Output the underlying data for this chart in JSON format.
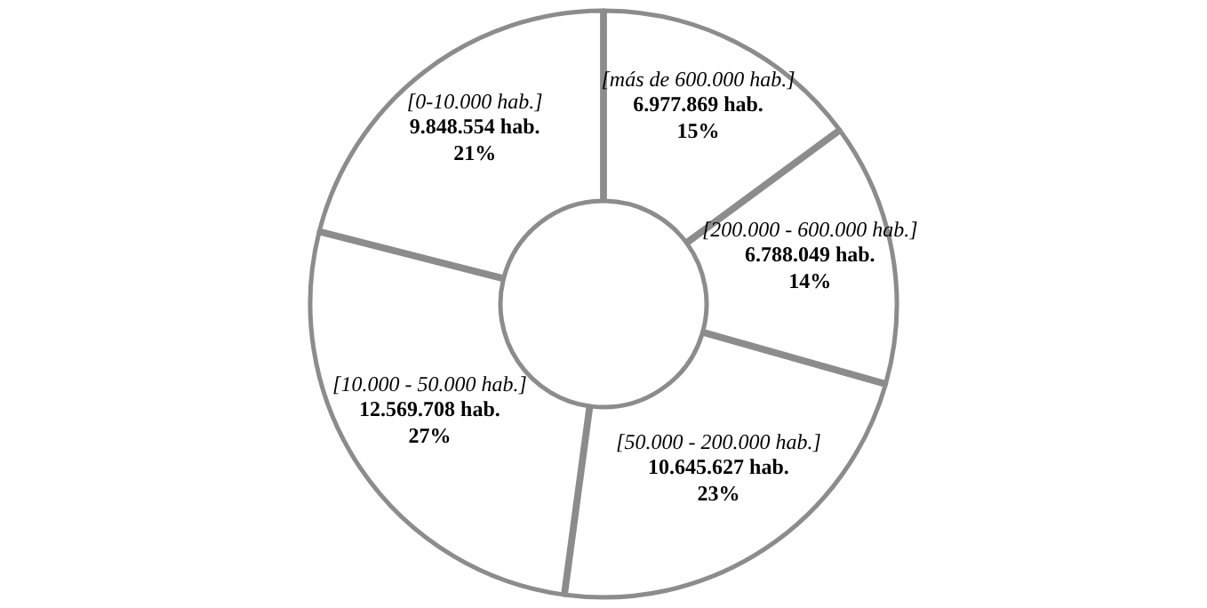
{
  "chart_data": {
    "type": "donut",
    "categories": [
      "[más de 600.000 hab.]",
      "[200.000 - 600.000 hab.]",
      "[50.000 - 200.000 hab.]",
      "[10.000 - 50.000 hab.]",
      "[0-10.000 hab.]"
    ],
    "values": [
      6977869,
      6788049,
      10645627,
      12569708,
      9848554
    ],
    "colors": [
      "#ffffff",
      "#ffffff",
      "#ffffff",
      "#ffffff",
      "#ffffff"
    ],
    "value_labels": [
      "6.977.869 hab.\n15%",
      "6.788.049 hab.\n14%",
      "10.645.627 hab.\n23%",
      "12.569.708 hab.\n27%",
      "9.848.554 hab.\n21%"
    ]
  }
}
